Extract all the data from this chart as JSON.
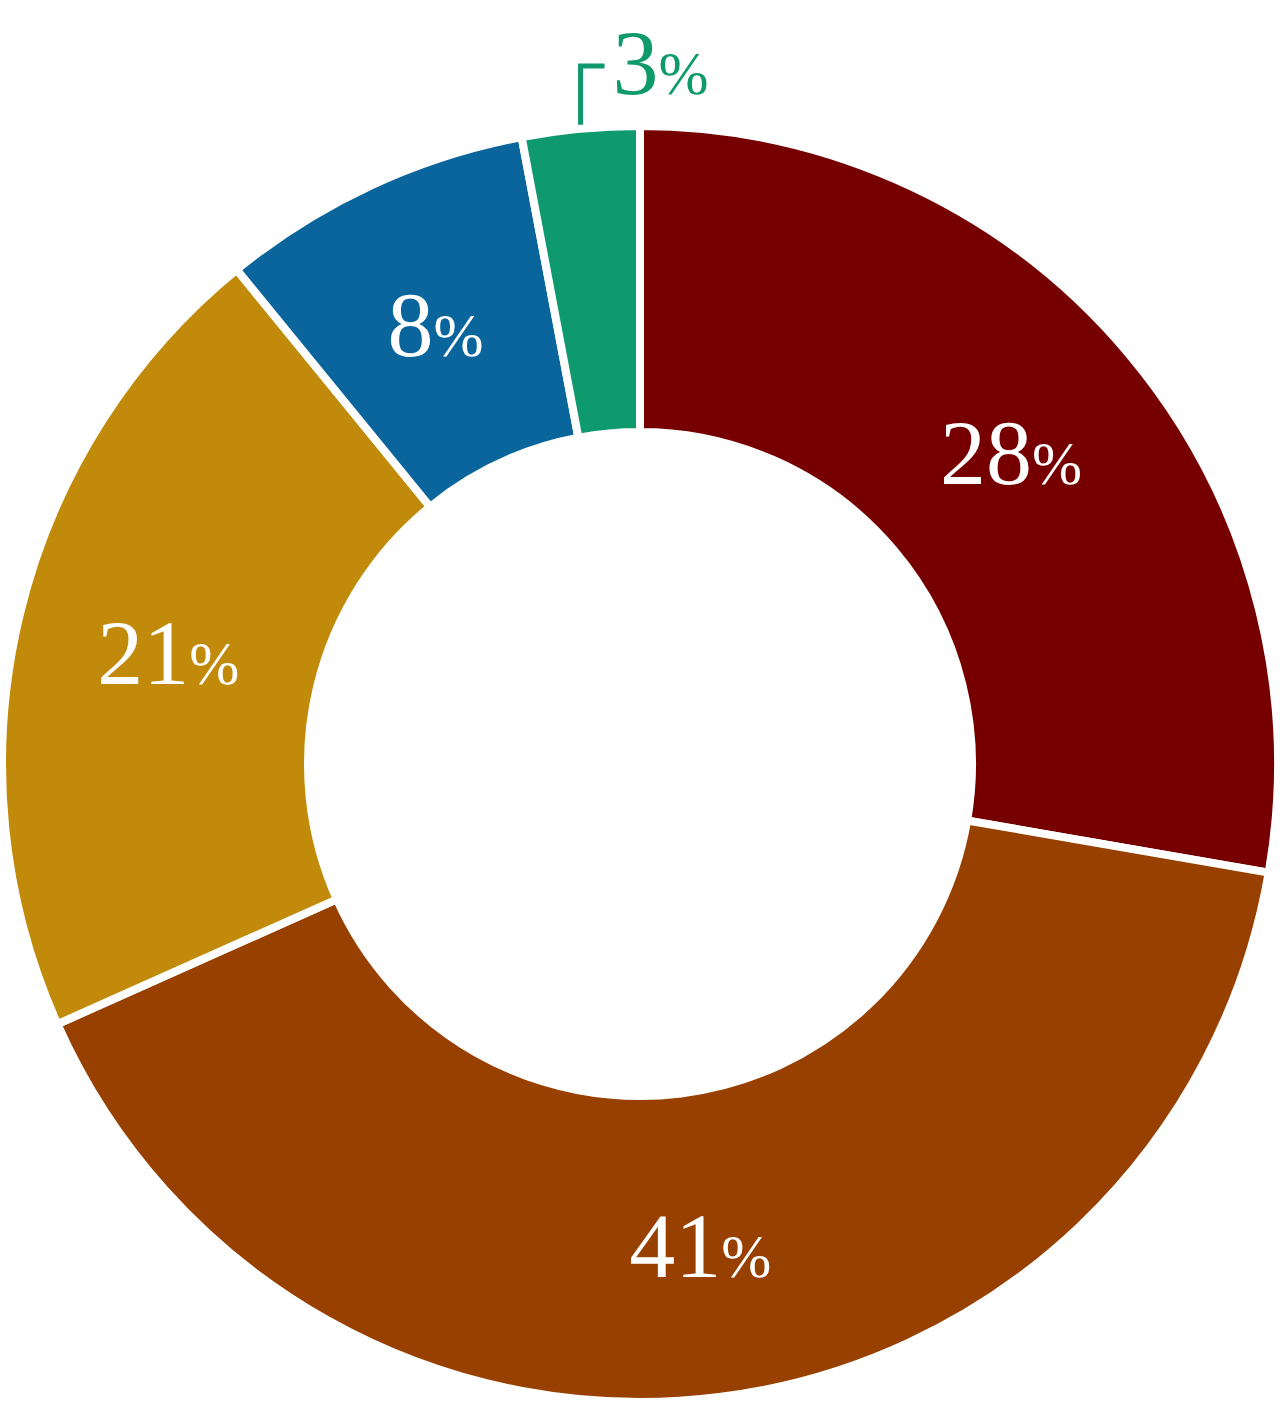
{
  "chart_data": {
    "type": "donut",
    "categories": [
      null,
      null,
      null,
      null,
      null
    ],
    "values": [
      28,
      41,
      21,
      8,
      3
    ],
    "colors": [
      "#760000",
      "#984000",
      "#c18a0a",
      "#0a659c",
      "#0e9a6c"
    ],
    "value_labels": [
      "28%",
      "41%",
      "21%",
      "8%",
      "3%"
    ]
  }
}
